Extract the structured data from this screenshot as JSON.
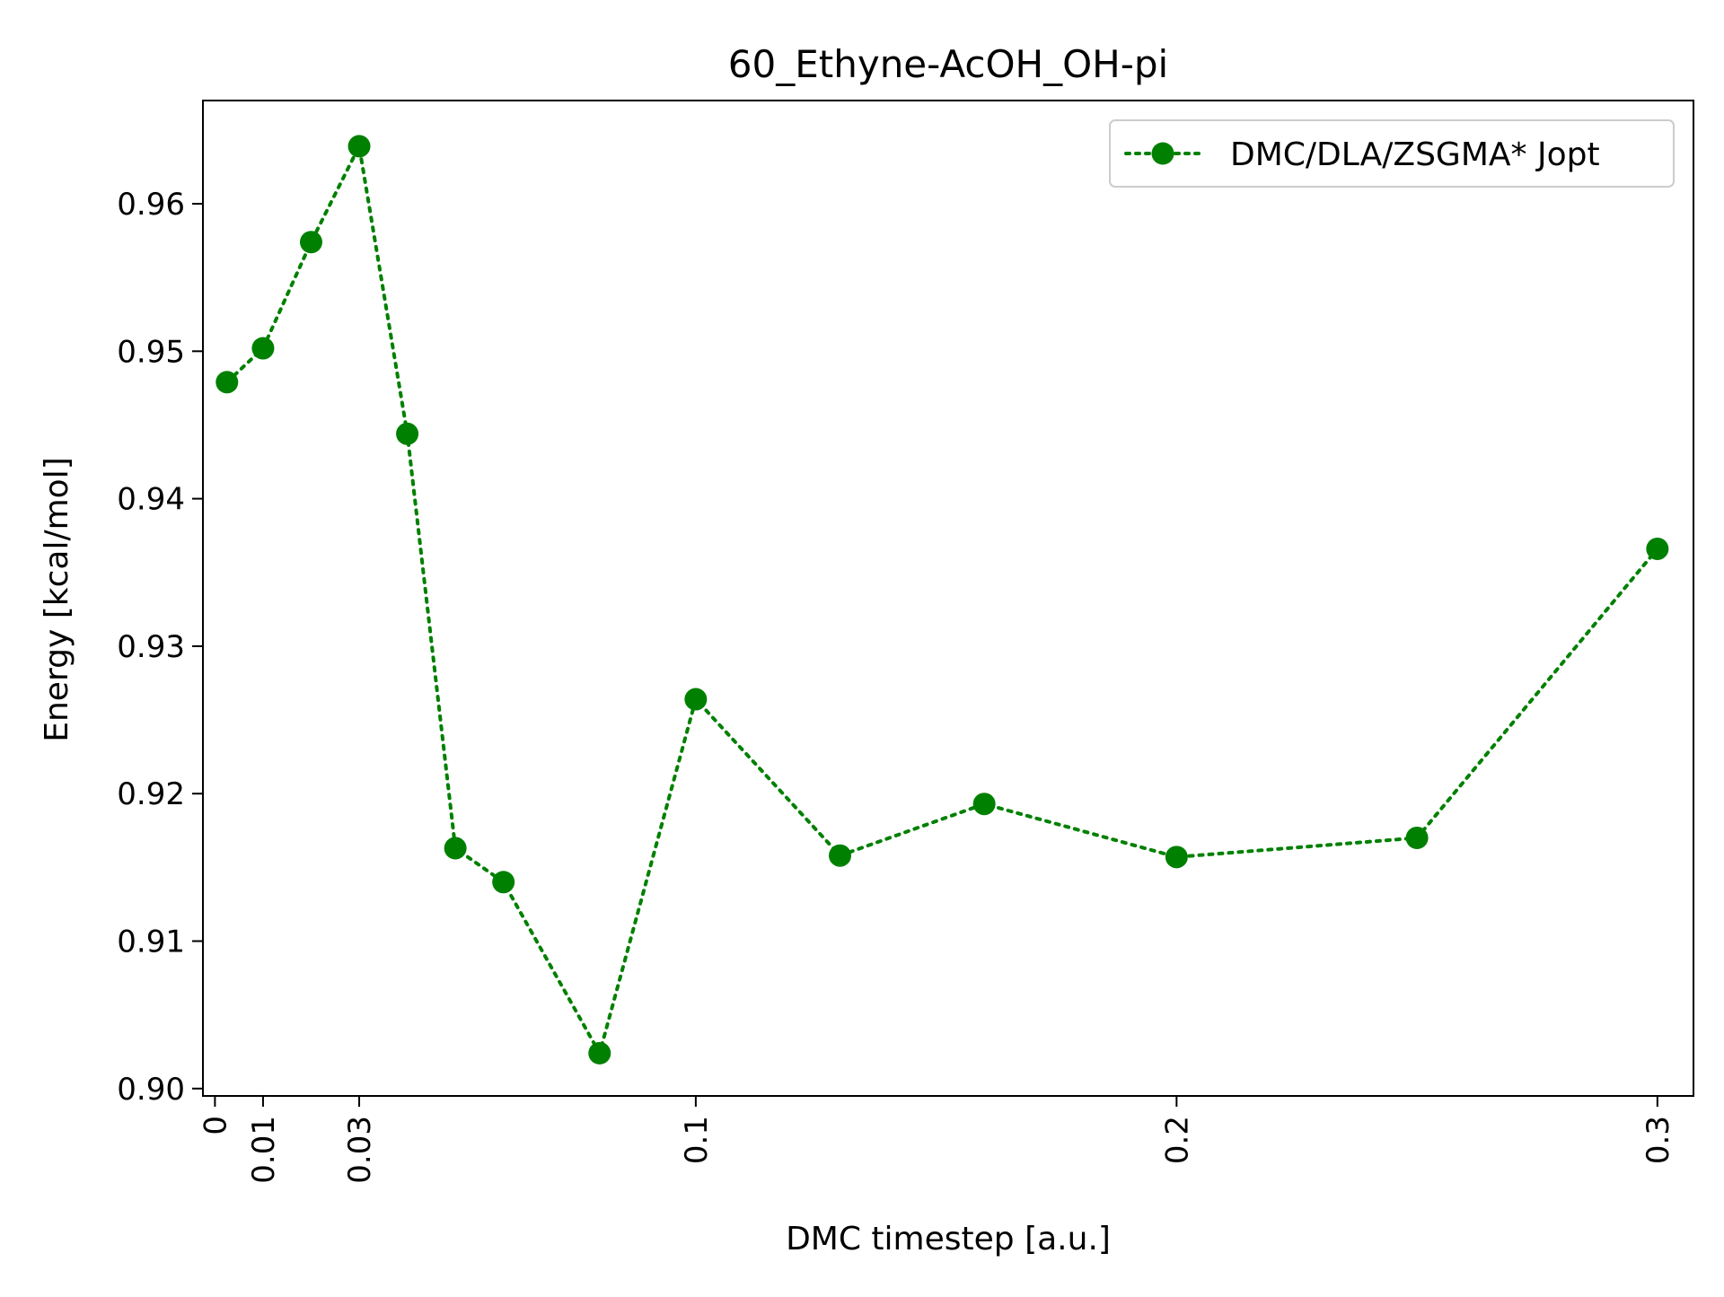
{
  "chart_data": {
    "type": "line",
    "title": "60_Ethyne-AcOH_OH-pi",
    "xlabel": "DMC timestep [a.u.]",
    "ylabel": "Energy [kcal/mol]",
    "xlim": [
      -0.0025,
      0.3075
    ],
    "ylim": [
      0.8995,
      0.967
    ],
    "x_ticks": [
      0,
      0.01,
      0.03,
      0.1,
      0.2,
      0.3
    ],
    "x_tick_labels": [
      "0",
      "0.01",
      "0.03",
      "0.1",
      "0.2",
      "0.3"
    ],
    "y_ticks": [
      0.9,
      0.91,
      0.92,
      0.93,
      0.94,
      0.95,
      0.96
    ],
    "y_tick_labels": [
      "0.90",
      "0.91",
      "0.92",
      "0.93",
      "0.94",
      "0.95",
      "0.96"
    ],
    "grid": false,
    "legend_position": "top-right",
    "series": [
      {
        "name": "DMC/DLA/ZSGMA* Jopt",
        "color": "#008000",
        "line_style": "dotted",
        "marker": "circle",
        "x": [
          0.0025,
          0.01,
          0.02,
          0.03,
          0.04,
          0.05,
          0.06,
          0.08,
          0.1,
          0.13,
          0.16,
          0.2,
          0.25,
          0.3
        ],
        "y": [
          0.9479,
          0.9502,
          0.9574,
          0.9639,
          0.9444,
          0.9163,
          0.914,
          0.9024,
          0.9264,
          0.9158,
          0.9193,
          0.9157,
          0.917,
          0.9366
        ]
      }
    ]
  }
}
